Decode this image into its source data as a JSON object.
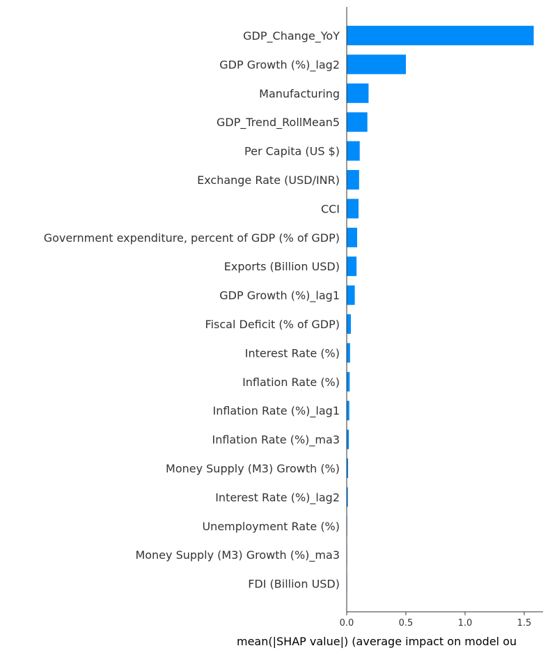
{
  "chart_data": {
    "type": "bar",
    "orientation": "horizontal",
    "title": "",
    "xlabel": "mean(|SHAP value|) (average impact on model ou",
    "ylabel": "",
    "categories": [
      "GDP_Change_YoY",
      "GDP Growth (%)_lag2",
      "Manufacturing",
      "GDP_Trend_RollMean5",
      "Per Capita (US $)",
      "Exchange Rate (USD/INR)",
      "CCI",
      "Government expenditure, percent of GDP (% of GDP)",
      "Exports (Billion USD)",
      "GDP Growth (%)_lag1",
      "Fiscal Deficit (% of GDP)",
      "Interest Rate (%)",
      "Inflation Rate (%)",
      "Inflation Rate (%)_lag1",
      "Inflation Rate (%)_ma3",
      "Money Supply (M3) Growth (%)",
      "Interest Rate (%)_lag2",
      "Unemployment Rate (%)",
      "Money Supply (M3) Growth (%)_ma3",
      "FDI (Billion USD)"
    ],
    "values": [
      1.58,
      0.5,
      0.185,
      0.175,
      0.11,
      0.105,
      0.1,
      0.088,
      0.083,
      0.068,
      0.035,
      0.028,
      0.025,
      0.022,
      0.018,
      0.012,
      0.01,
      0.004,
      0.002,
      0.001
    ],
    "xticks": [
      0.0,
      0.5,
      1.0,
      1.5
    ],
    "xtick_labels": [
      "0.0",
      "0.5",
      "1.0",
      "1.5"
    ],
    "xlim": [
      0,
      1.62
    ],
    "grid": false,
    "legend": "none",
    "bar_color": "#008bfb",
    "axis_color": "#333333"
  }
}
